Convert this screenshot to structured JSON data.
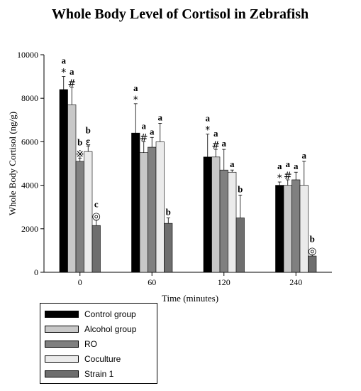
{
  "chart_data": {
    "type": "bar",
    "title": "Whole Body Level of Cortisol in Zebrafish",
    "xlabel": "Time (minutes)",
    "ylabel": "Whole Body Cortisol (ng/g)",
    "ylim": [
      0,
      10000
    ],
    "yticks": [
      "0",
      "2000",
      "4000",
      "6000",
      "8000",
      "10000"
    ],
    "categories": [
      "0",
      "60",
      "120",
      "240"
    ],
    "legend_position": "bottom-left",
    "series": [
      {
        "name": "Control group",
        "color": "#000000",
        "values": [
          8400,
          6400,
          5300,
          4000
        ],
        "errors": [
          600,
          1350,
          1050,
          150
        ],
        "labels": [
          "a",
          "a",
          "a",
          "a"
        ],
        "symbols": [
          "*",
          "*",
          "*",
          "*"
        ]
      },
      {
        "name": "Alcohol group",
        "color": "#c8c8c8",
        "values": [
          7700,
          5500,
          5300,
          4000
        ],
        "errors": [
          800,
          500,
          350,
          250
        ],
        "labels": [
          "a",
          "a",
          "a",
          "a"
        ],
        "symbols": [
          "#",
          "#",
          "#",
          "#"
        ]
      },
      {
        "name": "RO",
        "color": "#808080",
        "values": [
          5100,
          5750,
          4700,
          4250
        ],
        "errors": [
          150,
          450,
          950,
          350
        ],
        "labels": [
          "b",
          "a",
          "a",
          "a"
        ],
        "symbols": [
          "※",
          "",
          "",
          ""
        ]
      },
      {
        "name": "Coculture",
        "color": "#ebebeb",
        "values": [
          5550,
          6000,
          4600,
          4000
        ],
        "errors": [
          250,
          850,
          100,
          1100
        ],
        "labels": [
          "b",
          "a",
          "a",
          "a"
        ],
        "symbols": [
          "ε",
          "",
          "",
          ""
        ]
      },
      {
        "name": "Strain 1",
        "color": "#6e6e6e",
        "values": [
          2150,
          2250,
          2500,
          750
        ],
        "errors": [
          250,
          250,
          1050,
          50
        ],
        "labels": [
          "c",
          "b",
          "b",
          "b"
        ],
        "symbols": [
          "◎",
          "",
          "",
          "◎"
        ]
      }
    ]
  }
}
